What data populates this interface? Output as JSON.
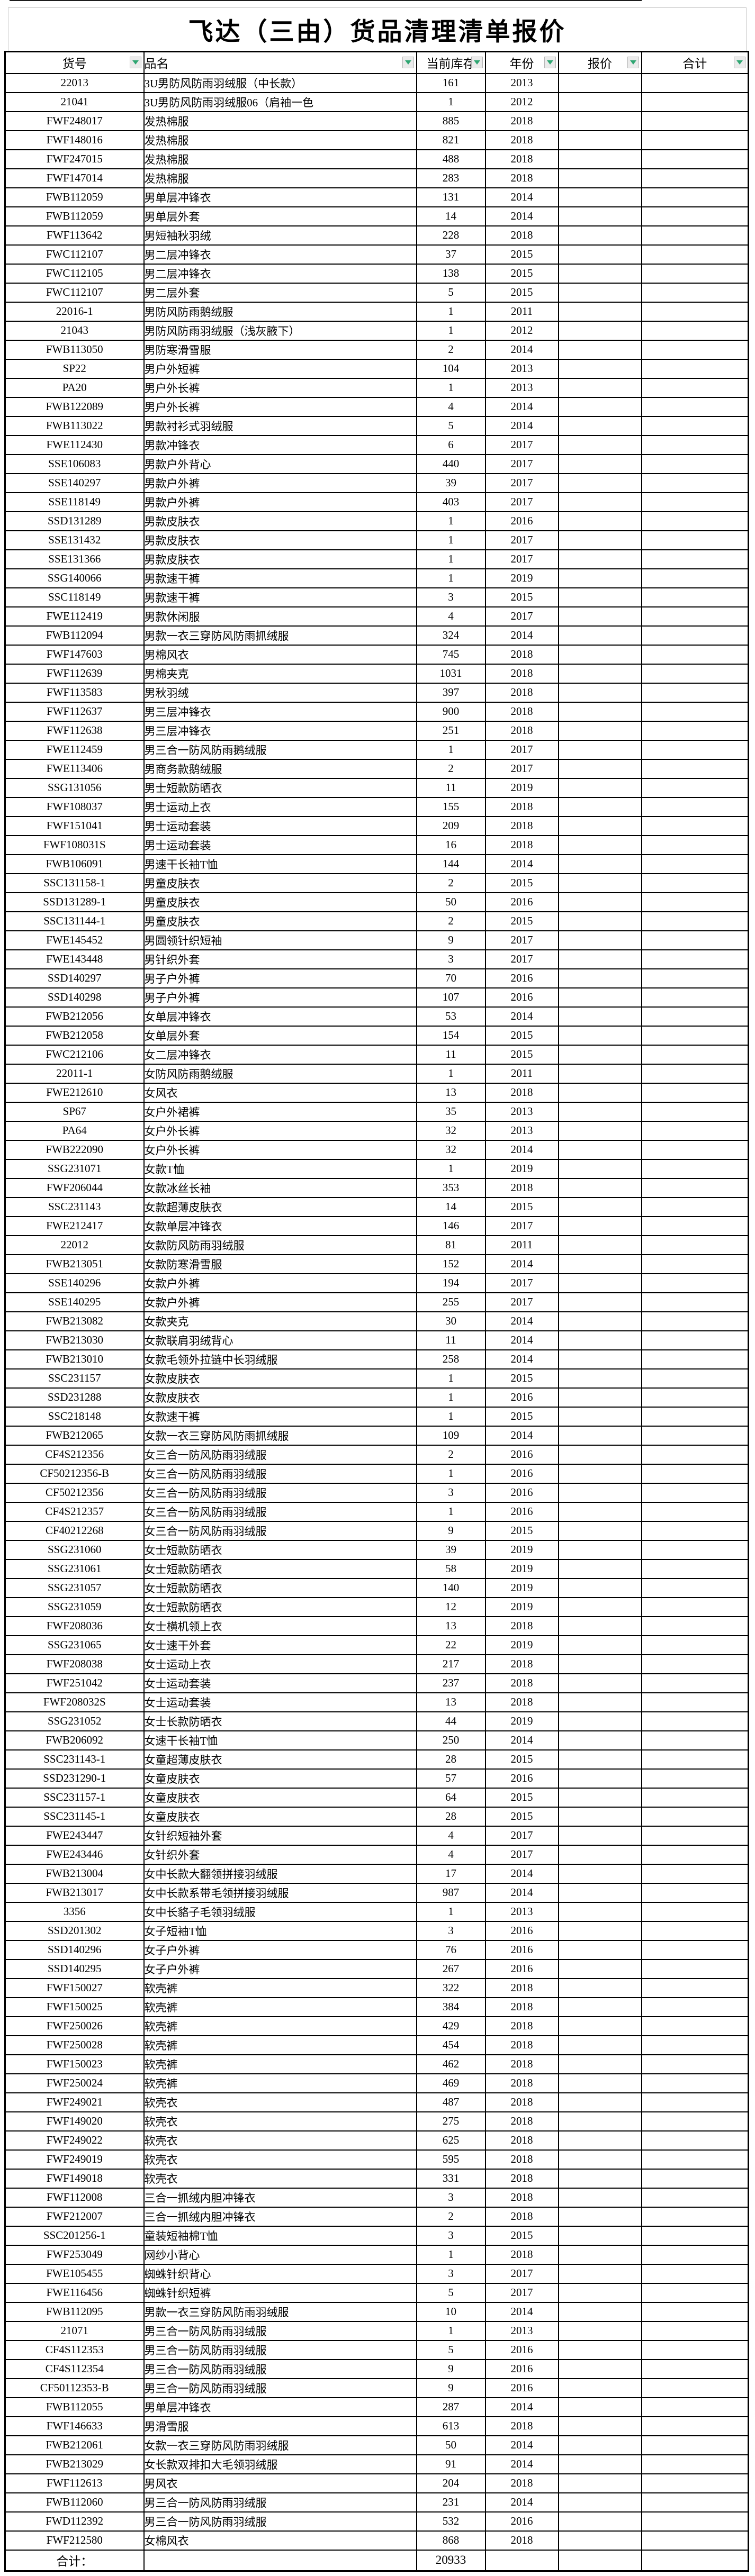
{
  "title": "飞达（三由）货品清理清单报价",
  "colors": {
    "grid_border": "#000000",
    "title_border": "#c9c9c9",
    "filter_arrow_green": "#2fa672",
    "filter_button_bg": "#ebebeb",
    "background": "#ffffff"
  },
  "table": {
    "headers": {
      "code": "货号",
      "name": "品名",
      "stock": "当前库存",
      "year": "年份",
      "price": "报价",
      "total": "合计"
    },
    "filter_icon": "down-arrow",
    "rows": [
      [
        "22013",
        "3U男防风防雨羽绒服（中长款）",
        "161",
        "2013"
      ],
      [
        "21041",
        "3U男防风防雨羽绒服06（肩袖一色",
        "1",
        "2012"
      ],
      [
        "FWF248017",
        "发热棉服",
        "885",
        "2018"
      ],
      [
        "FWF148016",
        "发热棉服",
        "821",
        "2018"
      ],
      [
        "FWF247015",
        "发热棉服",
        "488",
        "2018"
      ],
      [
        "FWF147014",
        "发热棉服",
        "283",
        "2018"
      ],
      [
        "FWB112059",
        "男单层冲锋衣",
        "131",
        "2014"
      ],
      [
        "FWB112059",
        "男单层外套",
        "14",
        "2014"
      ],
      [
        "FWF113642",
        "男短袖秋羽绒",
        "228",
        "2018"
      ],
      [
        "FWC112107",
        "男二层冲锋衣",
        "37",
        "2015"
      ],
      [
        "FWC112105",
        "男二层冲锋衣",
        "138",
        "2015"
      ],
      [
        "FWC112107",
        "男二层外套",
        "5",
        "2015"
      ],
      [
        "22016-1",
        "男防风防雨鹅绒服",
        "1",
        "2011"
      ],
      [
        "21043",
        "男防风防雨羽绒服（浅灰腋下）",
        "1",
        "2012"
      ],
      [
        "FWB113050",
        "男防寒滑雪服",
        "2",
        "2014"
      ],
      [
        "SP22",
        "男户外短裤",
        "104",
        "2013"
      ],
      [
        "PA20",
        "男户外长裤",
        "1",
        "2013"
      ],
      [
        "FWB122089",
        "男户外长裤",
        "4",
        "2014"
      ],
      [
        "FWB113022",
        "男款衬衫式羽绒服",
        "5",
        "2014"
      ],
      [
        "FWE112430",
        "男款冲锋衣",
        "6",
        "2017"
      ],
      [
        "SSE106083",
        "男款户外背心",
        "440",
        "2017"
      ],
      [
        "SSE140297",
        "男款户外裤",
        "39",
        "2017"
      ],
      [
        "SSE118149",
        "男款户外裤",
        "403",
        "2017"
      ],
      [
        "SSD131289",
        "男款皮肤衣",
        "1",
        "2016"
      ],
      [
        "SSE131432",
        "男款皮肤衣",
        "1",
        "2017"
      ],
      [
        "SSE131366",
        "男款皮肤衣",
        "1",
        "2017"
      ],
      [
        "SSG140066",
        "男款速干裤",
        "1",
        "2019"
      ],
      [
        "SSC118149",
        "男款速干裤",
        "3",
        "2015"
      ],
      [
        "FWE112419",
        "男款休闲服",
        "4",
        "2017"
      ],
      [
        "FWB112094",
        "男款一衣三穿防风防雨抓绒服",
        "324",
        "2014"
      ],
      [
        "FWF147603",
        "男棉风衣",
        "745",
        "2018"
      ],
      [
        "FWF112639",
        "男棉夹克",
        "1031",
        "2018"
      ],
      [
        "FWF113583",
        "男秋羽绒",
        "397",
        "2018"
      ],
      [
        "FWF112637",
        "男三层冲锋衣",
        "900",
        "2018"
      ],
      [
        "FWF112638",
        "男三层冲锋衣",
        "251",
        "2018"
      ],
      [
        "FWE112459",
        "男三合一防风防雨鹅绒服",
        "1",
        "2017"
      ],
      [
        "FWE113406",
        "男商务款鹅绒服",
        "2",
        "2017"
      ],
      [
        "SSG131056",
        "男士短款防晒衣",
        "11",
        "2019"
      ],
      [
        "FWF108037",
        "男士运动上衣",
        "155",
        "2018"
      ],
      [
        "FWF151041",
        "男士运动套装",
        "209",
        "2018"
      ],
      [
        "FWF108031S",
        "男士运动套装",
        "16",
        "2018"
      ],
      [
        "FWB106091",
        "男速干长袖T恤",
        "144",
        "2014"
      ],
      [
        "SSC131158-1",
        "男童皮肤衣",
        "2",
        "2015"
      ],
      [
        "SSD131289-1",
        "男童皮肤衣",
        "50",
        "2016"
      ],
      [
        "SSC131144-1",
        "男童皮肤衣",
        "2",
        "2015"
      ],
      [
        "FWE145452",
        "男圆领针织短袖",
        "9",
        "2017"
      ],
      [
        "FWE143448",
        "男针织外套",
        "3",
        "2017"
      ],
      [
        "SSD140297",
        "男子户外裤",
        "70",
        "2016"
      ],
      [
        "SSD140298",
        "男子户外裤",
        "107",
        "2016"
      ],
      [
        "FWB212056",
        "女单层冲锋衣",
        "53",
        "2014"
      ],
      [
        "FWB212058",
        "女单层外套",
        "154",
        "2015"
      ],
      [
        "FWC212106",
        "女二层冲锋衣",
        "11",
        "2015"
      ],
      [
        "22011-1",
        "女防风防雨鹅绒服",
        "1",
        "2011"
      ],
      [
        "FWE212610",
        "女风衣",
        "13",
        "2018"
      ],
      [
        "SP67",
        "女户外裙裤",
        "35",
        "2013"
      ],
      [
        "PA64",
        "女户外长裤",
        "32",
        "2013"
      ],
      [
        "FWB222090",
        "女户外长裤",
        "32",
        "2014"
      ],
      [
        "SSG231071",
        "女款T恤",
        "1",
        "2019"
      ],
      [
        "FWF206044",
        "女款冰丝长袖",
        "353",
        "2018"
      ],
      [
        "SSC231143",
        "女款超薄皮肤衣",
        "14",
        "2015"
      ],
      [
        "FWE212417",
        "女款单层冲锋衣",
        "146",
        "2017"
      ],
      [
        "22012",
        "女款防风防雨羽绒服",
        "81",
        "2011"
      ],
      [
        "FWB213051",
        "女款防寒滑雪服",
        "152",
        "2014"
      ],
      [
        "SSE140296",
        "女款户外裤",
        "194",
        "2017"
      ],
      [
        "SSE140295",
        "女款户外裤",
        "255",
        "2017"
      ],
      [
        "FWB213082",
        "女款夹克",
        "30",
        "2014"
      ],
      [
        "FWB213030",
        "女款联肩羽绒背心",
        "11",
        "2014"
      ],
      [
        "FWB213010",
        "女款毛领外拉链中长羽绒服",
        "258",
        "2014"
      ],
      [
        "SSC231157",
        "女款皮肤衣",
        "1",
        "2015"
      ],
      [
        "SSD231288",
        "女款皮肤衣",
        "1",
        "2016"
      ],
      [
        "SSC218148",
        "女款速干裤",
        "1",
        "2015"
      ],
      [
        "FWB212065",
        "女款一衣三穿防风防雨抓绒服",
        "109",
        "2014"
      ],
      [
        "CF4S212356",
        "女三合一防风防雨羽绒服",
        "2",
        "2016"
      ],
      [
        "CF50212356-B",
        "女三合一防风防雨羽绒服",
        "1",
        "2016"
      ],
      [
        "CF50212356",
        "女三合一防风防雨羽绒服",
        "3",
        "2016"
      ],
      [
        "CF4S212357",
        "女三合一防风防雨羽绒服",
        "1",
        "2016"
      ],
      [
        "CF40212268",
        "女三合一防风防雨羽绒服",
        "9",
        "2015"
      ],
      [
        "SSG231060",
        "女士短款防晒衣",
        "39",
        "2019"
      ],
      [
        "SSG231061",
        "女士短款防晒衣",
        "58",
        "2019"
      ],
      [
        "SSG231057",
        "女士短款防晒衣",
        "140",
        "2019"
      ],
      [
        "SSG231059",
        "女士短款防晒衣",
        "12",
        "2019"
      ],
      [
        "FWF208036",
        "女士横机领上衣",
        "13",
        "2018"
      ],
      [
        "SSG231065",
        "女士速干外套",
        "22",
        "2019"
      ],
      [
        "FWF208038",
        "女士运动上衣",
        "217",
        "2018"
      ],
      [
        "FWF251042",
        "女士运动套装",
        "237",
        "2018"
      ],
      [
        "FWF208032S",
        "女士运动套装",
        "13",
        "2018"
      ],
      [
        "SSG231052",
        "女士长款防晒衣",
        "44",
        "2019"
      ],
      [
        "FWB206092",
        "女速干长袖T恤",
        "250",
        "2014"
      ],
      [
        "SSC231143-1",
        "女童超薄皮肤衣",
        "28",
        "2015"
      ],
      [
        "SSD231290-1",
        "女童皮肤衣",
        "57",
        "2016"
      ],
      [
        "SSC231157-1",
        "女童皮肤衣",
        "64",
        "2015"
      ],
      [
        "SSC231145-1",
        "女童皮肤衣",
        "28",
        "2015"
      ],
      [
        "FWE243447",
        "女针织短袖外套",
        "4",
        "2017"
      ],
      [
        "FWE243446",
        "女针织外套",
        "4",
        "2017"
      ],
      [
        "FWB213004",
        "女中长款大翻领拼接羽绒服",
        "17",
        "2014"
      ],
      [
        "FWB213017",
        "女中长款系带毛领拼接羽绒服",
        "987",
        "2014"
      ],
      [
        "3356",
        "女中长貉子毛领羽绒服",
        "1",
        "2013"
      ],
      [
        "SSD201302",
        "女子短袖T恤",
        "3",
        "2016"
      ],
      [
        "SSD140296",
        "女子户外裤",
        "76",
        "2016"
      ],
      [
        "SSD140295",
        "女子户外裤",
        "267",
        "2016"
      ],
      [
        "FWF150027",
        "软壳裤",
        "322",
        "2018"
      ],
      [
        "FWF150025",
        "软壳裤",
        "384",
        "2018"
      ],
      [
        "FWF250026",
        "软壳裤",
        "429",
        "2018"
      ],
      [
        "FWF250028",
        "软壳裤",
        "454",
        "2018"
      ],
      [
        "FWF150023",
        "软壳裤",
        "462",
        "2018"
      ],
      [
        "FWF250024",
        "软壳裤",
        "469",
        "2018"
      ],
      [
        "FWF249021",
        "软壳衣",
        "487",
        "2018"
      ],
      [
        "FWF149020",
        "软壳衣",
        "275",
        "2018"
      ],
      [
        "FWF249022",
        "软壳衣",
        "625",
        "2018"
      ],
      [
        "FWF249019",
        "软壳衣",
        "595",
        "2018"
      ],
      [
        "FWF149018",
        "软壳衣",
        "331",
        "2018"
      ],
      [
        "FWF112008",
        "三合一抓绒内胆冲锋衣",
        "3",
        "2018"
      ],
      [
        "FWF212007",
        "三合一抓绒内胆冲锋衣",
        "2",
        "2018"
      ],
      [
        "SSC201256-1",
        "童装短袖棉T恤",
        "3",
        "2015"
      ],
      [
        "FWF253049",
        "网纱小背心",
        "1",
        "2018"
      ],
      [
        "FWE105455",
        "蜘蛛针织背心",
        "3",
        "2017"
      ],
      [
        "FWE116456",
        "蜘蛛针织短裤",
        "5",
        "2017"
      ],
      [
        "FWB112095",
        "男款一衣三穿防风防雨羽绒服",
        "10",
        "2014"
      ],
      [
        "21071",
        "男三合一防风防雨羽绒服",
        "1",
        "2013"
      ],
      [
        "CF4S112353",
        "男三合一防风防雨羽绒服",
        "5",
        "2016"
      ],
      [
        "CF4S112354",
        "男三合一防风防雨羽绒服",
        "9",
        "2016"
      ],
      [
        "CF50112353-B",
        "男三合一防风防雨羽绒服",
        "9",
        "2016"
      ],
      [
        "FWB112055",
        "男单层冲锋衣",
        "287",
        "2014"
      ],
      [
        "FWF146633",
        "男滑雪服",
        "613",
        "2018"
      ],
      [
        "FWB212061",
        "女款一衣三穿防风防雨羽绒服",
        "50",
        "2014"
      ],
      [
        "FWB213029",
        "女长款双排扣大毛领羽绒服",
        "91",
        "2014"
      ],
      [
        "FWF112613",
        "男风衣",
        "204",
        "2018"
      ],
      [
        "FWB112060",
        "男三合一防风防雨羽绒服",
        "231",
        "2014"
      ],
      [
        "FWD112392",
        "男三合一防风防雨羽绒服",
        "532",
        "2016"
      ],
      [
        "FWF212580",
        "女棉风衣",
        "868",
        "2018"
      ]
    ],
    "footer": {
      "label": "合计：",
      "total_stock": "20933"
    }
  }
}
